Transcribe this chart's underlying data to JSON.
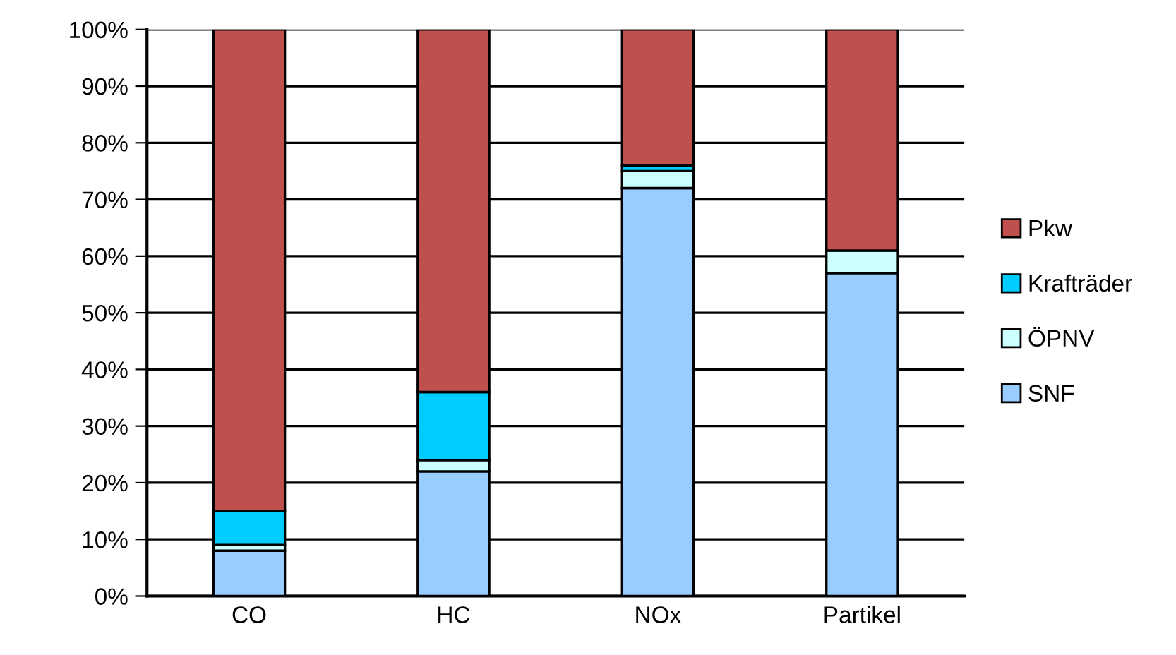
{
  "chart_data": {
    "type": "bar",
    "stacked": true,
    "categories": [
      "CO",
      "HC",
      "NOx",
      "Partikel"
    ],
    "series": [
      {
        "name": "SNF",
        "color": "#99ccff",
        "values": [
          8,
          22,
          72,
          57
        ]
      },
      {
        "name": "ÖPNV",
        "color": "#ccffff",
        "values": [
          1,
          2,
          3,
          4
        ]
      },
      {
        "name": "Krafträder",
        "color": "#00ccff",
        "values": [
          6,
          12,
          1,
          0
        ]
      },
      {
        "name": "Pkw",
        "color": "#c0504d",
        "values": [
          85,
          64,
          24,
          39
        ]
      }
    ],
    "ylim": [
      0,
      100
    ],
    "yticks": [
      {
        "value": 0,
        "label": "0%"
      },
      {
        "value": 10,
        "label": "10%"
      },
      {
        "value": 20,
        "label": "20%"
      },
      {
        "value": 30,
        "label": "30%"
      },
      {
        "value": 40,
        "label": "40%"
      },
      {
        "value": 50,
        "label": "50%"
      },
      {
        "value": 60,
        "label": "60%"
      },
      {
        "value": 70,
        "label": "70%"
      },
      {
        "value": 80,
        "label": "80%"
      },
      {
        "value": 90,
        "label": "90%"
      },
      {
        "value": 100,
        "label": "100%"
      }
    ],
    "grid": "y",
    "legend": "right"
  }
}
